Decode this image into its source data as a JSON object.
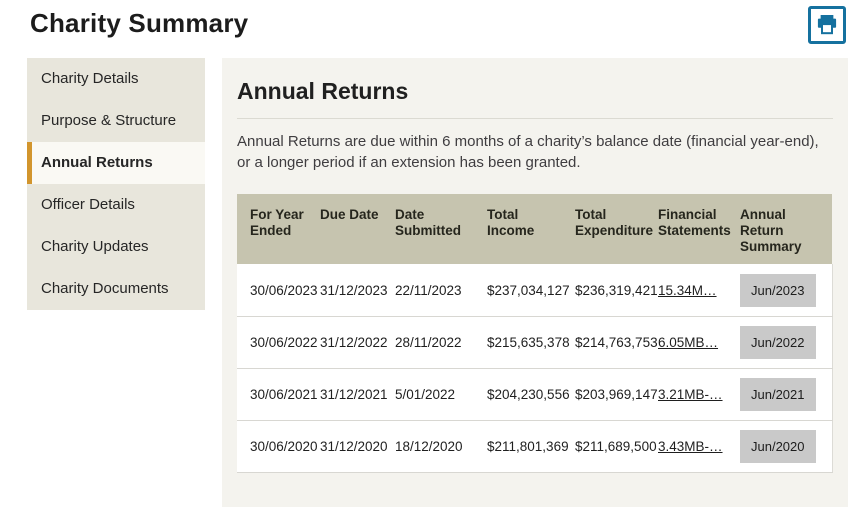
{
  "page": {
    "title": "Charity Summary"
  },
  "toolbar": {
    "print_icon": "printer-icon"
  },
  "sidebar": {
    "items": [
      {
        "label": "Charity Details",
        "active": false
      },
      {
        "label": "Purpose & Structure",
        "active": false
      },
      {
        "label": "Annual Returns",
        "active": true
      },
      {
        "label": "Officer Details",
        "active": false
      },
      {
        "label": "Charity Updates",
        "active": false
      },
      {
        "label": "Charity Documents",
        "active": false
      }
    ]
  },
  "main": {
    "heading": "Annual Returns",
    "description": "Annual Returns are due within 6 months of a charity’s balance date (financial year-end), or a longer period if an extension has been granted.",
    "table": {
      "columns": [
        "For Year Ended",
        "Due Date",
        "Date Submitted",
        "Total Income",
        "Total Expenditure",
        "Financial Statements",
        "Annual Return Summary"
      ],
      "fields": [
        "for_year_ended",
        "due_date",
        "date_submitted",
        "total_income",
        "total_expenditure",
        "financial_statements",
        "annual_return_summary"
      ],
      "link_field": "financial_statements",
      "button_field": "annual_return_summary",
      "rows": [
        {
          "for_year_ended": "30/06/2023",
          "due_date": "31/12/2023",
          "date_submitted": "22/11/2023",
          "total_income": "$237,034,127",
          "total_expenditure": "$236,319,421",
          "financial_statements": "15.34M…",
          "annual_return_summary": "Jun/2023"
        },
        {
          "for_year_ended": "30/06/2022",
          "due_date": "31/12/2022",
          "date_submitted": "28/11/2022",
          "total_income": "$215,635,378",
          "total_expenditure": "$214,763,753",
          "financial_statements": "6.05MB…",
          "annual_return_summary": "Jun/2022"
        },
        {
          "for_year_ended": "30/06/2021",
          "due_date": "31/12/2021",
          "date_submitted": "5/01/2022",
          "total_income": "$204,230,556",
          "total_expenditure": "$203,969,147",
          "financial_statements": "3.21MB-…",
          "annual_return_summary": "Jun/2021"
        },
        {
          "for_year_ended": "30/06/2020",
          "due_date": "31/12/2020",
          "date_submitted": "18/12/2020",
          "total_income": "$211,801,369",
          "total_expenditure": "$211,689,500",
          "financial_statements": "3.43MB-…",
          "annual_return_summary": "Jun/2020"
        }
      ]
    }
  },
  "colors": {
    "accent_blue": "#15719f",
    "accent_gold": "#d2952d",
    "sidebar_bg": "#e8e6dc",
    "panel_bg": "#f4f3ee",
    "table_header_bg": "#c6c4af",
    "button_bg": "#c9c9c9"
  }
}
